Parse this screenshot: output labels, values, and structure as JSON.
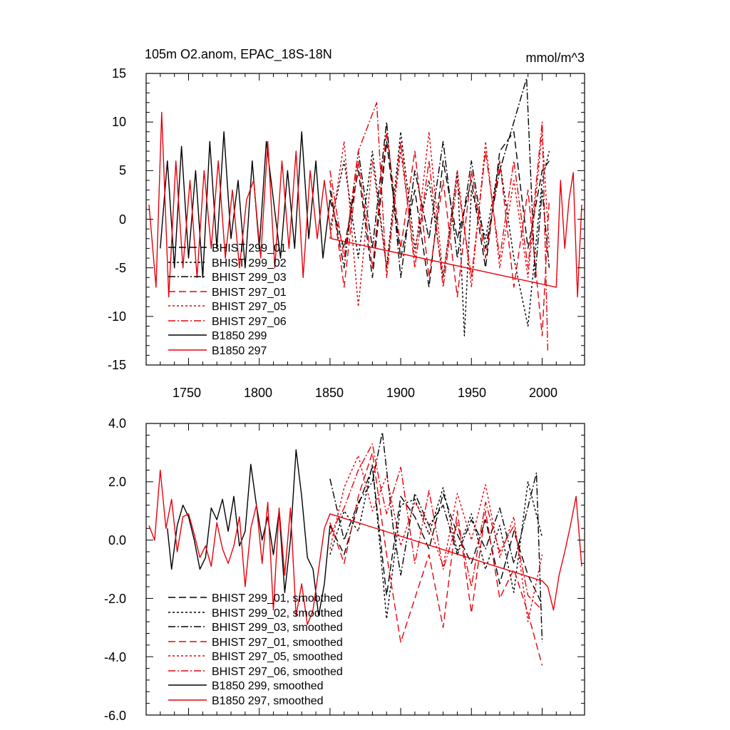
{
  "colors": {
    "black": "#000000",
    "red": "#e8000b"
  },
  "chart_data": [
    {
      "type": "line",
      "title": "105m O2.anom, EPAC_18S-18N",
      "units": "mmol/m^3",
      "xlabel": "",
      "ylabel": "",
      "xlim": [
        1720,
        2030
      ],
      "ylim": [
        -15,
        15
      ],
      "xticks": [
        1750,
        1800,
        1850,
        1900,
        1950,
        2000
      ],
      "xtick_labels": [
        "1750",
        "1800",
        "1850",
        "1900",
        "1950",
        "2000"
      ],
      "yticks": [
        15,
        10,
        5,
        0,
        -5,
        -10,
        -15
      ],
      "ytick_labels": [
        "15",
        "10",
        "5",
        "0",
        "-5",
        "-10",
        "-15"
      ],
      "legend_position": "bottom-left",
      "series": [
        {
          "name": "BHIST 299_01",
          "color": "black",
          "dash": "dashed",
          "x": [
            1850,
            1860,
            1870,
            1880,
            1890,
            1900,
            1910,
            1920,
            1930,
            1940,
            1950,
            1960,
            1970,
            1980,
            1990,
            2000,
            2005
          ],
          "y": [
            2,
            -3,
            5,
            -6,
            8,
            -4,
            3,
            -7,
            6,
            -2,
            4,
            -5,
            7,
            9,
            -3,
            5,
            6
          ]
        },
        {
          "name": "BHIST 299_02",
          "color": "black",
          "dash": "dotted",
          "x": [
            1850,
            1860,
            1870,
            1880,
            1890,
            1900,
            1910,
            1920,
            1930,
            1940,
            1945,
            1950,
            1960,
            1970,
            1980,
            1990,
            2000,
            2005
          ],
          "y": [
            -1,
            6,
            -4,
            7,
            -5,
            9,
            -3,
            4,
            -6,
            5,
            -12,
            3,
            -2,
            6,
            -4,
            -11,
            4,
            7
          ]
        },
        {
          "name": "BHIST 299_03",
          "color": "black",
          "dash": "dashdot",
          "x": [
            1850,
            1860,
            1870,
            1880,
            1890,
            1900,
            1910,
            1920,
            1930,
            1940,
            1950,
            1960,
            1970,
            1980,
            1989,
            1995,
            2000,
            2005
          ],
          "y": [
            3,
            -5,
            7,
            -3,
            10,
            -6,
            5,
            -2,
            8,
            -4,
            6,
            -3,
            5,
            10,
            14.5,
            -6,
            3,
            -5
          ]
        },
        {
          "name": "BHIST 297_01",
          "color": "red",
          "dash": "dashed",
          "x": [
            1850,
            1860,
            1870,
            1880,
            1890,
            1900,
            1910,
            1920,
            1930,
            1940,
            1950,
            1960,
            1970,
            1980,
            1990,
            2000,
            2005
          ],
          "y": [
            4,
            -7,
            6,
            -5,
            9,
            -3,
            7,
            -6,
            4,
            -8,
            5,
            -4,
            6,
            -7,
            3,
            -12,
            2
          ]
        },
        {
          "name": "BHIST 297_05",
          "color": "red",
          "dash": "dotted",
          "x": [
            1850,
            1860,
            1870,
            1880,
            1890,
            1900,
            1910,
            1920,
            1930,
            1940,
            1950,
            1960,
            1970,
            1980,
            1990,
            2000,
            2005
          ],
          "y": [
            -2,
            8,
            -9,
            6,
            -5,
            7,
            -4,
            9,
            -6,
            5,
            -7,
            8,
            -5,
            4,
            -6,
            9,
            -3
          ]
        },
        {
          "name": "BHIST 297_06",
          "color": "red",
          "dash": "dashdot",
          "x": [
            1850,
            1860,
            1870,
            1883,
            1890,
            1900,
            1910,
            1920,
            1930,
            1940,
            1950,
            1960,
            1970,
            1980,
            1990,
            2000,
            2004
          ],
          "y": [
            5,
            -4,
            7,
            12,
            -6,
            8,
            -5,
            6,
            -7,
            4,
            -6,
            7,
            -4,
            6,
            -5,
            10,
            -13.5
          ]
        },
        {
          "name": "B1850 299",
          "color": "black",
          "dash": "solid",
          "x": [
            1730,
            1735,
            1740,
            1745,
            1750,
            1755,
            1760,
            1765,
            1770,
            1775,
            1780,
            1785,
            1790,
            1795,
            1800,
            1805,
            1810,
            1815,
            1820,
            1825,
            1830,
            1835,
            1840,
            1845,
            1850
          ],
          "y": [
            -3,
            6,
            -5,
            7.5,
            -4,
            5,
            -6,
            8,
            -3,
            9,
            -2,
            4,
            -5,
            6,
            -3,
            8,
            2,
            -4,
            5,
            -3,
            9,
            -2,
            6,
            -4,
            2
          ]
        },
        {
          "name": "B1850 297",
          "color": "red",
          "dash": "solid",
          "x": [
            1722,
            1727,
            1731,
            1736,
            1741,
            1746,
            1751,
            1756,
            1761,
            1766,
            1771,
            1776,
            1781,
            1786,
            1791,
            1796,
            1801,
            1806,
            1811,
            1816,
            1821,
            1826,
            1831,
            1836,
            1841,
            1846,
            1851,
            2010,
            2013,
            2016,
            2019,
            2022,
            2025,
            2028
          ],
          "y": [
            1.5,
            -7,
            11,
            -8,
            6,
            -5,
            4,
            -6,
            5,
            -3,
            6,
            -4,
            3,
            -5,
            2,
            4,
            -4,
            8,
            -5,
            6,
            -3,
            7,
            -6,
            5,
            -2,
            4,
            -2,
            -7,
            4,
            -3,
            2,
            4.8,
            -8,
            1.5
          ]
        }
      ]
    },
    {
      "type": "line",
      "title": "",
      "xlabel": "",
      "ylabel": "",
      "xlim": [
        1720,
        2030
      ],
      "ylim": [
        -6,
        4
      ],
      "yticks": [
        4,
        2,
        0,
        -2,
        -4,
        -6
      ],
      "ytick_labels": [
        "4.0",
        "2.0",
        "0.0",
        "-2.0",
        "-4.0",
        "-6.0"
      ],
      "legend_position": "bottom-left",
      "series": [
        {
          "name": "BHIST 299_01, smoothed",
          "color": "black",
          "dash": "dashed",
          "x": [
            1850,
            1860,
            1870,
            1880,
            1890,
            1900,
            1910,
            1920,
            1930,
            1940,
            1950,
            1960,
            1970,
            1980,
            1990,
            2000
          ],
          "y": [
            0.5,
            -0.5,
            1.2,
            2.5,
            -1.9,
            1.5,
            0.8,
            -0.3,
            1.6,
            0.2,
            -0.8,
            0.7,
            -1.5,
            0.3,
            -1.2,
            -2.2
          ]
        },
        {
          "name": "BHIST 299_02, smoothed",
          "color": "black",
          "dash": "dotted",
          "x": [
            1850,
            1860,
            1870,
            1880,
            1890,
            1900,
            1910,
            1920,
            1930,
            1940,
            1950,
            1960,
            1970,
            1980,
            1990,
            2000
          ],
          "y": [
            -0.5,
            1.0,
            0.3,
            2.6,
            -2.7,
            1.2,
            1.4,
            0.2,
            1.8,
            -0.4,
            0.9,
            -1.0,
            0.5,
            -1.8,
            2.0,
            0.1
          ]
        },
        {
          "name": "BHIST 299_03, smoothed",
          "color": "black",
          "dash": "dashdot",
          "x": [
            1850,
            1860,
            1870,
            1880,
            1887,
            1895,
            1900,
            1910,
            1920,
            1930,
            1940,
            1950,
            1960,
            1970,
            1980,
            1996,
            2000
          ],
          "y": [
            2.1,
            0.0,
            1.3,
            2.0,
            3.7,
            0.3,
            -1.2,
            1.6,
            0.5,
            1.2,
            -0.5,
            0.7,
            -0.3,
            1.1,
            -0.8,
            2.3,
            -3.5
          ]
        },
        {
          "name": "BHIST 297_01, smoothed",
          "color": "red",
          "dash": "dashed",
          "x": [
            1850,
            1860,
            1870,
            1880,
            1890,
            1900,
            1910,
            1920,
            1930,
            1940,
            1950,
            1960,
            1970,
            1980,
            1990,
            2000
          ],
          "y": [
            0.6,
            -0.8,
            1.5,
            3.0,
            -0.5,
            -3.5,
            -2.0,
            -0.5,
            -3.0,
            1.0,
            -2.5,
            1.0,
            -2.0,
            -1.0,
            -2.5,
            -4.3
          ]
        },
        {
          "name": "BHIST 297_05, smoothed",
          "color": "red",
          "dash": "dotted",
          "x": [
            1850,
            1860,
            1870,
            1880,
            1890,
            1900,
            1910,
            1920,
            1930,
            1940,
            1950,
            1960,
            1970,
            1980,
            1990,
            2000
          ],
          "y": [
            -0.3,
            1.8,
            2.9,
            1.0,
            2.2,
            -0.2,
            1.3,
            0.5,
            -0.9,
            1.6,
            0.0,
            1.9,
            -0.6,
            0.8,
            -2.8,
            -0.5
          ]
        },
        {
          "name": "BHIST 297_06, smoothed",
          "color": "red",
          "dash": "dashdot",
          "x": [
            1850,
            1860,
            1870,
            1880,
            1885,
            1890,
            1900,
            1910,
            1920,
            1930,
            1940,
            1950,
            1960,
            1970,
            1980,
            1990,
            2000
          ],
          "y": [
            0.2,
            1.1,
            2.4,
            3.3,
            2.0,
            0.9,
            2.5,
            -0.8,
            1.7,
            -1.0,
            0.6,
            -1.6,
            1.3,
            -0.4,
            0.5,
            -1.9,
            -2.4
          ]
        },
        {
          "name": "B1850 299, smoothed",
          "color": "black",
          "dash": "solid",
          "x": [
            1735,
            1738,
            1742,
            1746,
            1750,
            1754,
            1758,
            1762,
            1766,
            1770,
            1774,
            1778,
            1782,
            1786,
            1790,
            1794,
            1798,
            1802,
            1806,
            1810,
            1814,
            1818,
            1822,
            1826,
            1830,
            1834,
            1838,
            1842,
            1846,
            1850
          ],
          "y": [
            0.4,
            -1.0,
            0.5,
            1.2,
            0.8,
            0.0,
            -1.0,
            -0.6,
            1.1,
            0.7,
            1.4,
            0.3,
            1.5,
            -0.2,
            0.3,
            2.6,
            1.2,
            0.0,
            0.8,
            -0.5,
            1.0,
            -1.8,
            0.0,
            3.1,
            1.5,
            -0.6,
            -1.0,
            -2.6,
            -1.5,
            0.5
          ]
        },
        {
          "name": "B1850 297, smoothed",
          "color": "red",
          "dash": "solid",
          "x": [
            1722,
            1726,
            1730,
            1734,
            1738,
            1742,
            1746,
            1750,
            1754,
            1758,
            1762,
            1766,
            1770,
            1774,
            1778,
            1782,
            1786,
            1790,
            1794,
            1798,
            1802,
            1806,
            1810,
            1814,
            1818,
            1822,
            1826,
            1830,
            1834,
            1838,
            1842,
            1846,
            1850,
            2000,
            2004,
            2008,
            2012,
            2016,
            2020,
            2024,
            2028
          ],
          "y": [
            0.5,
            0.0,
            2.4,
            0.4,
            1.4,
            -0.4,
            0.8,
            0.9,
            0.2,
            -0.6,
            -0.2,
            -0.9,
            0.6,
            -0.3,
            -0.8,
            -0.2,
            0.8,
            -1.6,
            0.4,
            1.2,
            -0.8,
            1.3,
            -2.4,
            1.1,
            -1.2,
            1.1,
            -2.6,
            -1.5,
            -2.9,
            -2.4,
            -1.0,
            0.4,
            0.9,
            -1.4,
            -1.6,
            -2.4,
            -1.2,
            -0.4,
            0.5,
            1.5,
            -0.9
          ]
        }
      ]
    }
  ]
}
